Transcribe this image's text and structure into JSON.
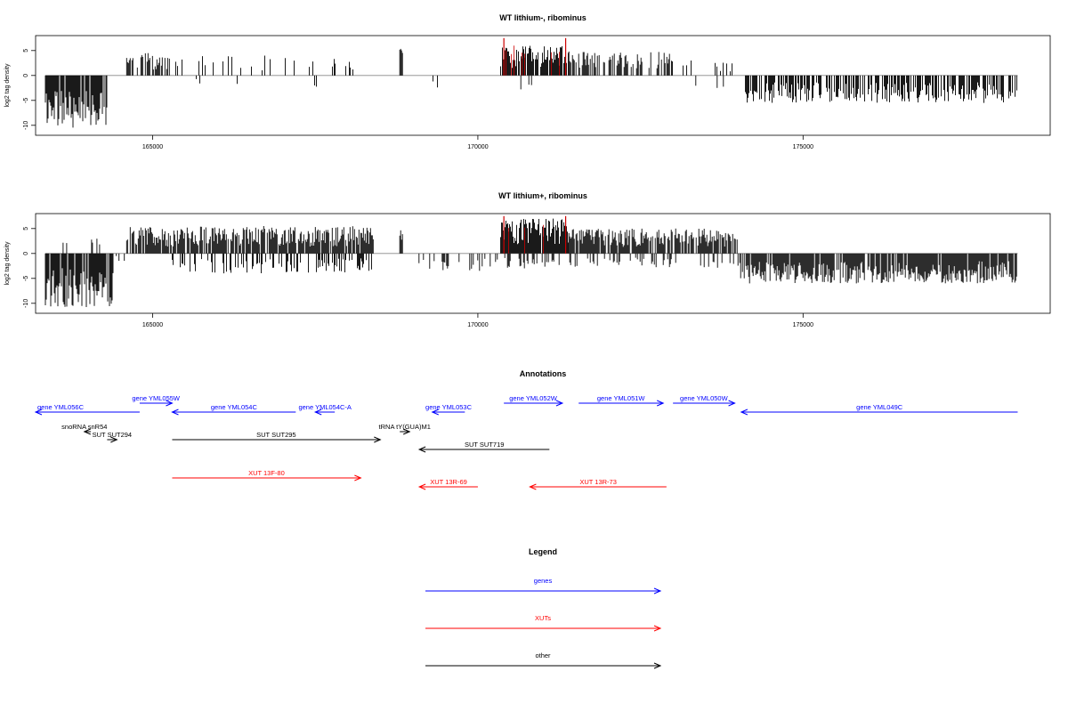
{
  "chart_data": [
    {
      "type": "bar",
      "title": "WT lithium-, ribominus",
      "ylabel": "log2 tag density",
      "xlim": [
        163200,
        178800
      ],
      "ylim": [
        -12,
        8
      ],
      "x_ticks": [
        165000,
        170000,
        175000
      ],
      "x_tick_labels": [
        "165000",
        "170000",
        "175000"
      ],
      "y_ticks": [
        5,
        0,
        -5,
        -10
      ],
      "y_tick_labels": [
        "5",
        "0",
        "-5",
        "-10"
      ],
      "bar_color": "#000000",
      "highlight_color": "#cc0000",
      "regions": [
        {
          "x_start": 163350,
          "x_end": 164300,
          "sign": -1,
          "max_abs": 10.5,
          "density": 0.9
        },
        {
          "x_start": 164600,
          "x_end": 165300,
          "sign": 1,
          "max_abs": 4.5,
          "density": 0.55
        },
        {
          "x_start": 165300,
          "x_end": 168300,
          "sign": 1,
          "max_abs": 4.0,
          "density": 0.12
        },
        {
          "x_start": 165300,
          "x_end": 168300,
          "sign": -1,
          "max_abs": 2.5,
          "density": 0.05
        },
        {
          "x_start": 168800,
          "x_end": 168850,
          "sign": 1,
          "max_abs": 6.0,
          "density": 1.0
        },
        {
          "x_start": 169200,
          "x_end": 170300,
          "sign": -1,
          "max_abs": 3.0,
          "density": 0.08
        },
        {
          "x_start": 170350,
          "x_end": 171400,
          "sign": 1,
          "max_abs": 6.0,
          "density": 0.85
        },
        {
          "x_start": 170400,
          "x_end": 171300,
          "sign": -1,
          "max_abs": 3.5,
          "density": 0.1
        },
        {
          "x_start": 171400,
          "x_end": 172950,
          "sign": 1,
          "max_abs": 4.8,
          "density": 0.45
        },
        {
          "x_start": 172950,
          "x_end": 174100,
          "sign": 1,
          "max_abs": 3.0,
          "density": 0.12
        },
        {
          "x_start": 173200,
          "x_end": 174000,
          "sign": -1,
          "max_abs": 2.5,
          "density": 0.05
        },
        {
          "x_start": 174100,
          "x_end": 178300,
          "sign": -1,
          "max_abs": 5.5,
          "density": 0.65
        }
      ],
      "highlights": [
        {
          "x": 170400,
          "y": 7.5
        },
        {
          "x": 171350,
          "y": 7.5
        }
      ]
    },
    {
      "type": "bar",
      "title": "WT lithium+, ribominus",
      "ylabel": "log2 tag density",
      "xlim": [
        163200,
        178800
      ],
      "ylim": [
        -12,
        8
      ],
      "x_ticks": [
        165000,
        170000,
        175000
      ],
      "x_tick_labels": [
        "165000",
        "170000",
        "175000"
      ],
      "y_ticks": [
        5,
        0,
        -5,
        -10
      ],
      "y_tick_labels": [
        "5",
        "0",
        "-5",
        "-10"
      ],
      "bar_color": "#000000",
      "highlight_color": "#cc0000",
      "regions": [
        {
          "x_start": 163350,
          "x_end": 164400,
          "sign": -1,
          "max_abs": 11.0,
          "density": 0.9
        },
        {
          "x_start": 163500,
          "x_end": 164300,
          "sign": 1,
          "max_abs": 3.0,
          "density": 0.15
        },
        {
          "x_start": 164400,
          "x_end": 164600,
          "sign": -1,
          "max_abs": 1.5,
          "density": 0.2
        },
        {
          "x_start": 164600,
          "x_end": 168400,
          "sign": 1,
          "max_abs": 5.5,
          "density": 0.85
        },
        {
          "x_start": 165300,
          "x_end": 168400,
          "sign": -1,
          "max_abs": 4.0,
          "density": 0.35
        },
        {
          "x_start": 168800,
          "x_end": 168850,
          "sign": 1,
          "max_abs": 6.0,
          "density": 1.0
        },
        {
          "x_start": 169000,
          "x_end": 170300,
          "sign": -1,
          "max_abs": 3.5,
          "density": 0.25
        },
        {
          "x_start": 170350,
          "x_end": 171400,
          "sign": 1,
          "max_abs": 7.0,
          "density": 0.95
        },
        {
          "x_start": 170400,
          "x_end": 171300,
          "sign": -1,
          "max_abs": 3.0,
          "density": 0.3
        },
        {
          "x_start": 171400,
          "x_end": 174000,
          "sign": 1,
          "max_abs": 5.0,
          "density": 0.8
        },
        {
          "x_start": 171400,
          "x_end": 174000,
          "sign": -1,
          "max_abs": 3.0,
          "density": 0.25
        },
        {
          "x_start": 174000,
          "x_end": 178300,
          "sign": -1,
          "max_abs": 6.0,
          "density": 0.9
        }
      ],
      "highlights": [
        {
          "x": 170400,
          "y": 7.5
        },
        {
          "x": 171350,
          "y": 7.5
        }
      ]
    }
  ],
  "annotations": {
    "title": "Annotations",
    "xlim": [
      163200,
      178800
    ],
    "features": [
      {
        "label": "gene YML056C",
        "x_start": 163200,
        "x_end": 164800,
        "row": 0,
        "strand": "-",
        "color": "#0000ff",
        "label_pos": "left"
      },
      {
        "label": "gene YML055W",
        "x_start": 164800,
        "x_end": 165300,
        "row": 1,
        "strand": "+",
        "color": "#0000ff",
        "label_pos": "center"
      },
      {
        "label": "gene YML054C",
        "x_start": 165300,
        "x_end": 167200,
        "row": 0,
        "strand": "-",
        "color": "#0000ff",
        "label_pos": "center"
      },
      {
        "label": "gene YML054C-A",
        "x_start": 167500,
        "x_end": 167800,
        "row": 0,
        "strand": "-",
        "color": "#0000ff",
        "label_pos": "center"
      },
      {
        "label": "gene YML053C",
        "x_start": 169300,
        "x_end": 169800,
        "row": 0,
        "strand": "-",
        "color": "#0000ff",
        "label_pos": "center"
      },
      {
        "label": "gene YML052W",
        "x_start": 170400,
        "x_end": 171300,
        "row": 1,
        "strand": "+",
        "color": "#0000ff",
        "label_pos": "center"
      },
      {
        "label": "gene YML051W",
        "x_start": 171550,
        "x_end": 172850,
        "row": 1,
        "strand": "+",
        "color": "#0000ff",
        "label_pos": "center"
      },
      {
        "label": "gene YML050W",
        "x_start": 173000,
        "x_end": 173950,
        "row": 1,
        "strand": "+",
        "color": "#0000ff",
        "label_pos": "center"
      },
      {
        "label": "gene YML049C",
        "x_start": 174050,
        "x_end": 178300,
        "row": 0,
        "strand": "-",
        "color": "#0000ff",
        "label_pos": "center"
      },
      {
        "label": "snoRNA snR54",
        "x_start": 163950,
        "x_end": 164050,
        "row": 2,
        "strand": "-",
        "color": "#000000",
        "label_pos": "center"
      },
      {
        "label": "SUT SUT294",
        "x_start": 164300,
        "x_end": 164450,
        "row": 3,
        "strand": "+",
        "color": "#000000",
        "label_pos": "center"
      },
      {
        "label": "tRNA tY(GUA)M1",
        "x_start": 168800,
        "x_end": 168950,
        "row": 2,
        "strand": "+",
        "color": "#000000",
        "label_pos": "center"
      },
      {
        "label": "SUT SUT295",
        "x_start": 165300,
        "x_end": 168500,
        "row": 4,
        "strand": "+",
        "color": "#000000",
        "label_pos": "center"
      },
      {
        "label": "SUT SUT719",
        "x_start": 169100,
        "x_end": 171100,
        "row": 5,
        "strand": "-",
        "color": "#000000",
        "label_pos": "center"
      },
      {
        "label": "XUT 13F-80",
        "x_start": 165300,
        "x_end": 168200,
        "row": 6,
        "strand": "+",
        "color": "#ff0000",
        "label_pos": "center"
      },
      {
        "label": "XUT 13R-69",
        "x_start": 169100,
        "x_end": 170000,
        "row": 7,
        "strand": "-",
        "color": "#ff0000",
        "label_pos": "center"
      },
      {
        "label": "XUT 13R-73",
        "x_start": 170800,
        "x_end": 172900,
        "row": 7,
        "strand": "-",
        "color": "#ff0000",
        "label_pos": "center"
      }
    ]
  },
  "legend": {
    "title": "Legend",
    "items": [
      {
        "label": "genes",
        "color": "#0000ff"
      },
      {
        "label": "XUTs",
        "color": "#ff0000"
      },
      {
        "label": "other",
        "color": "#000000"
      }
    ]
  }
}
